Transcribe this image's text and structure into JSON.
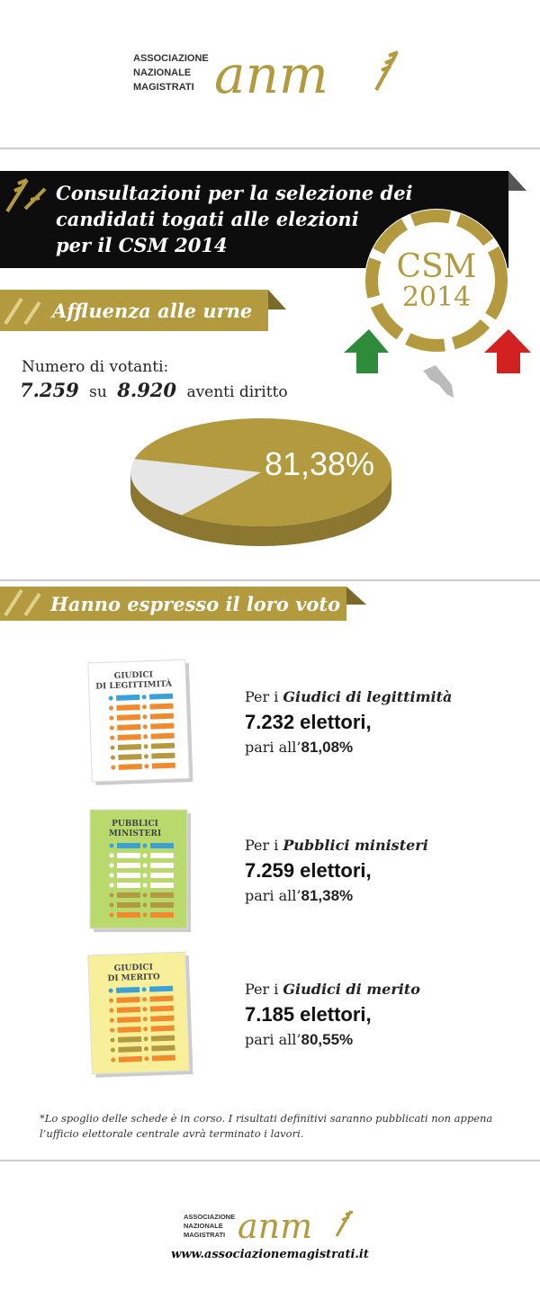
{
  "header": {
    "org_lines": [
      "ASSOCIAZIONE",
      "NAZIONALE",
      "MAGISTRATI"
    ],
    "logo": "anm"
  },
  "title": {
    "lines": [
      "Consultazioni per la selezione dei",
      "candidati togati alle elezioni",
      "per il CSM 2014"
    ]
  },
  "badge": {
    "lines": [
      "CSM",
      "2014"
    ]
  },
  "turnout": {
    "heading": "Affluenza alle urne",
    "label": "Numero di votanti:",
    "voters": "7.259",
    "connector": "su",
    "eligible": "8.920",
    "suffix": "aventi diritto"
  },
  "chart_data": {
    "type": "pie",
    "values": [
      81.38
    ],
    "value_labels": [
      "81,38%"
    ],
    "color": "#b39a3e"
  },
  "votes": {
    "heading": "Hanno espresso il loro voto",
    "groups": [
      {
        "ballot": [
          "GIUDICI",
          "DI LEGITTIMITÀ"
        ],
        "prefix": "Per i",
        "name": "Giudici di legittimità",
        "count": "7.232 elettori,",
        "pct_prefix": "pari all’",
        "pct": "81,08%"
      },
      {
        "ballot": [
          "PUBBLICI",
          "MINISTERI"
        ],
        "prefix": "Per i",
        "name": "Pubblici ministeri",
        "count": "7.259 elettori,",
        "pct_prefix": "pari all’",
        "pct": "81,38%"
      },
      {
        "ballot": [
          "GIUDICI",
          "DI MERITO"
        ],
        "prefix": "Per i",
        "name": "Giudici di merito",
        "count": "7.185 elettori,",
        "pct_prefix": "pari all’",
        "pct": "80,55%"
      }
    ]
  },
  "footnote": [
    "*Lo spoglio delle schede è in corso. I risultati definitivi saranno pubblicati non appena",
    "l’ufficio elettorale centrale avrà terminato i lavori."
  ],
  "footer": {
    "org_lines": [
      "ASSOCIAZIONE",
      "NAZIONALE",
      "MAGISTRATI"
    ],
    "logo": "anm",
    "url": "www.associazionemagistrati.it"
  }
}
